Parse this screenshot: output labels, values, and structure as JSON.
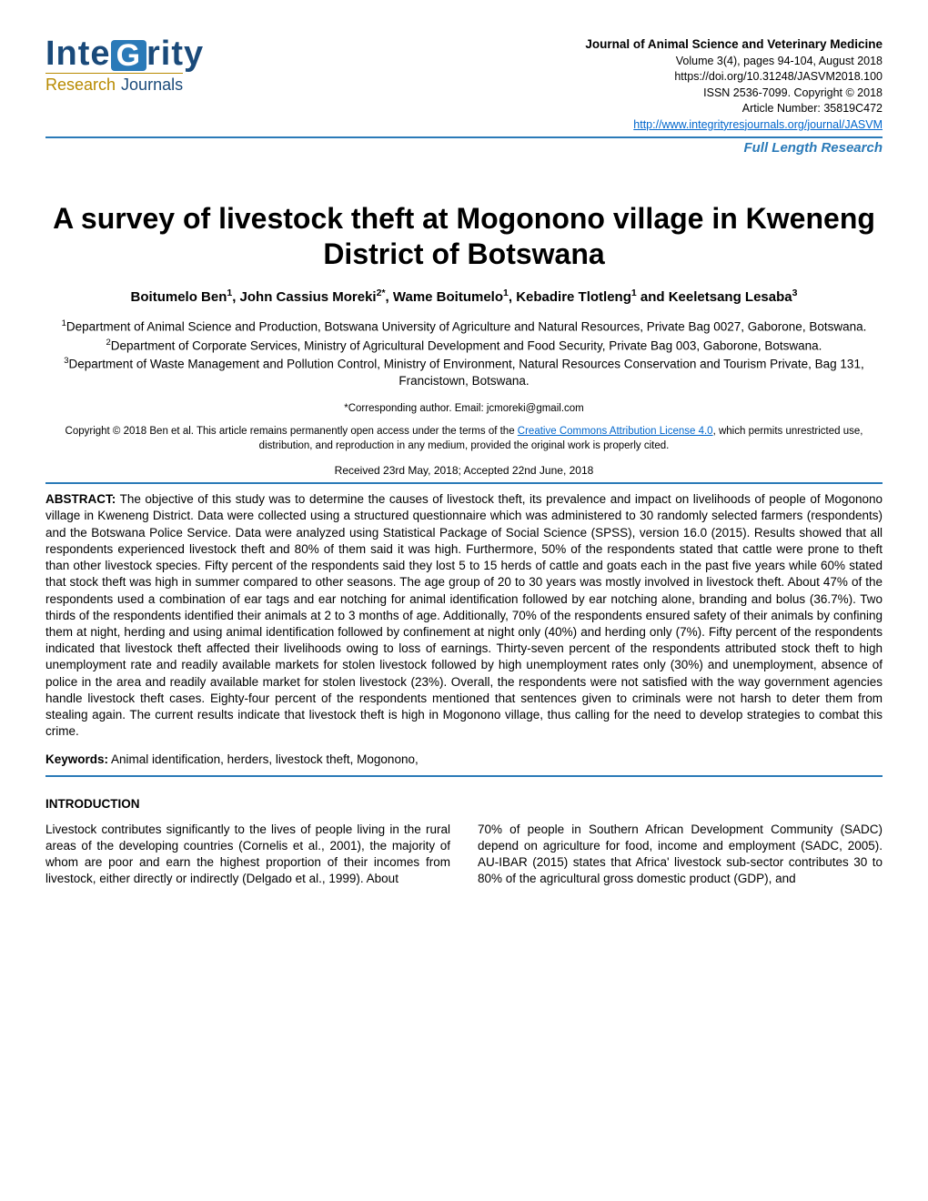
{
  "logo": {
    "main_pre": "Inte",
    "main_g": "G",
    "main_post": "rity",
    "sub_research": "Research",
    "sub_journals": "Journals"
  },
  "journal_meta": {
    "name": "Journal of Animal Science and Veterinary Medicine",
    "volume": "Volume 3(4), pages 94-104, August 2018",
    "doi": "https://doi.org/10.31248/JASVM2018.100",
    "issn": "ISSN 2536-7099. Copyright © 2018",
    "article_number": "Article Number: 35819C472",
    "url": "http://www.integrityresjournals.org/journal/JASVM"
  },
  "article_type": "Full Length Research",
  "title": "A survey of livestock theft at Mogonono village in Kweneng District of Botswana",
  "authors_html": "Boitumelo Ben<sup>1</sup>, John Cassius Moreki<sup>2*</sup>, Wame Boitumelo<sup>1</sup>, Kebadire Tlotleng<sup>1</sup> and Keeletsang Lesaba<sup>3</sup>",
  "affiliations": {
    "a1": "<sup>1</sup>Department of Animal Science and Production, Botswana University of Agriculture and Natural Resources, Private Bag 0027, Gaborone, Botswana.",
    "a2": "<sup>2</sup>Department of Corporate Services, Ministry of Agricultural Development and Food Security, Private Bag 003, Gaborone, Botswana.",
    "a3": "<sup>3</sup>Department of Waste Management and Pollution Control, Ministry of Environment, Natural Resources Conservation and Tourism Private, Bag 131, Francistown, Botswana."
  },
  "corresponding": "*Corresponding author. Email: jcmoreki@gmail.com",
  "copyright": {
    "pre": "Copyright © 2018 Ben et al. This article remains permanently open access under the terms of the ",
    "link_text": "Creative Commons Attribution License 4.0",
    "post": ", which permits unrestricted use, distribution, and reproduction in any medium, provided the original work is properly cited."
  },
  "dates": "Received 23rd May, 2018; Accepted 22nd June, 2018",
  "abstract": {
    "label": "ABSTRACT:",
    "text": " The objective of this study was to determine the causes of livestock theft, its prevalence and impact on livelihoods of people of Mogonono village in Kweneng District. Data were collected using a structured questionnaire which was administered to 30 randomly selected farmers (respondents) and the Botswana Police Service. Data were analyzed using Statistical Package of Social Science (SPSS), version 16.0 (2015). Results showed that all respondents experienced livestock theft and 80% of them said it was high. Furthermore, 50% of the respondents stated that cattle were prone to theft than other livestock species. Fifty percent of the respondents said they lost 5 to 15 herds of cattle and goats each in the past five years while 60% stated that stock theft was high in summer compared to other seasons. The age group of 20 to 30 years was mostly involved in livestock theft. About 47% of the respondents used a combination of ear tags and ear notching for animal identification followed by ear notching alone, branding and bolus (36.7%). Two thirds of the respondents identified their animals at 2 to 3 months of age. Additionally, 70% of the respondents ensured safety of their animals by confining them at night, herding and using animal identification followed by confinement at night only (40%) and herding only (7%). Fifty percent of the respondents indicated that livestock theft affected their livelihoods owing to loss of earnings. Thirty-seven percent of the respondents attributed stock theft to high unemployment rate and readily available markets for stolen livestock followed by high unemployment rates only (30%) and unemployment, absence of police in the area and readily available market for stolen livestock (23%). Overall, the respondents were not satisfied with the way government agencies handle livestock theft cases. Eighty-four percent of the respondents mentioned that sentences given to criminals were not harsh to deter them from stealing again. The current results indicate that livestock theft is high in Mogonono village, thus calling for the need to develop strategies to combat this crime."
  },
  "keywords": {
    "label": "Keywords:",
    "text": " Animal identification, herders, livestock theft, Mogonono,"
  },
  "introduction": {
    "heading": "INTRODUCTION",
    "col1": "Livestock contributes significantly to the lives of people living in the rural areas of the developing countries (Cornelis et al., 2001), the majority of whom are poor and earn the highest proportion of their incomes from livestock, either directly or indirectly (Delgado et al., 1999). About",
    "col2": "70% of people in Southern African Development Community (SADC) depend on agriculture for food, income and employment (SADC, 2005). AU-IBAR (2015) states that Africa' livestock sub-sector contributes 30 to 80% of the agricultural gross domestic product (GDP), and"
  },
  "colors": {
    "brand_blue": "#2a7ab8",
    "dark_blue": "#1a4a7a",
    "gold": "#b88a00",
    "link": "#0066cc",
    "text": "#000000",
    "background": "#ffffff"
  }
}
